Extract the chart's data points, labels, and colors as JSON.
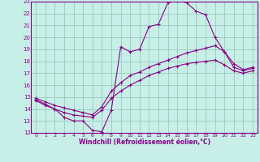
{
  "xlabel": "Windchill (Refroidissement éolien,°C)",
  "xlim": [
    -0.5,
    23.5
  ],
  "ylim": [
    12,
    23
  ],
  "xticks": [
    0,
    1,
    2,
    3,
    4,
    5,
    6,
    7,
    8,
    9,
    10,
    11,
    12,
    13,
    14,
    15,
    16,
    17,
    18,
    19,
    20,
    21,
    22,
    23
  ],
  "yticks": [
    12,
    13,
    14,
    15,
    16,
    17,
    18,
    19,
    20,
    21,
    22,
    23
  ],
  "bg_color": "#c8eee8",
  "line_color": "#880088",
  "grid_color": "#99ccbb",
  "series1_x": [
    0,
    1,
    2,
    3,
    4,
    5,
    6,
    7,
    8,
    9,
    10,
    11,
    12,
    13,
    14,
    15,
    16,
    17,
    18,
    19,
    20,
    21,
    22,
    23
  ],
  "series1_y": [
    14.8,
    14.4,
    14.0,
    13.3,
    13.0,
    13.0,
    12.2,
    12.1,
    13.9,
    19.2,
    18.8,
    19.0,
    20.9,
    21.1,
    22.9,
    23.1,
    22.9,
    22.2,
    21.9,
    20.0,
    18.8,
    17.5,
    17.2,
    17.4
  ],
  "series2_x": [
    0,
    1,
    2,
    3,
    4,
    5,
    6,
    7,
    8,
    9,
    10,
    11,
    12,
    13,
    14,
    15,
    16,
    17,
    18,
    19,
    20,
    21,
    22,
    23
  ],
  "series2_y": [
    14.9,
    14.6,
    14.3,
    14.1,
    13.9,
    13.7,
    13.5,
    14.2,
    15.5,
    16.2,
    16.8,
    17.1,
    17.5,
    17.8,
    18.1,
    18.4,
    18.7,
    18.9,
    19.1,
    19.3,
    18.8,
    17.8,
    17.3,
    17.5
  ],
  "series3_x": [
    0,
    1,
    2,
    3,
    4,
    5,
    6,
    7,
    8,
    9,
    10,
    11,
    12,
    13,
    14,
    15,
    16,
    17,
    18,
    19,
    20,
    21,
    22,
    23
  ],
  "series3_y": [
    14.7,
    14.3,
    14.0,
    13.7,
    13.5,
    13.4,
    13.3,
    13.9,
    14.9,
    15.5,
    16.0,
    16.4,
    16.8,
    17.1,
    17.4,
    17.6,
    17.8,
    17.9,
    18.0,
    18.1,
    17.7,
    17.2,
    17.0,
    17.2
  ]
}
